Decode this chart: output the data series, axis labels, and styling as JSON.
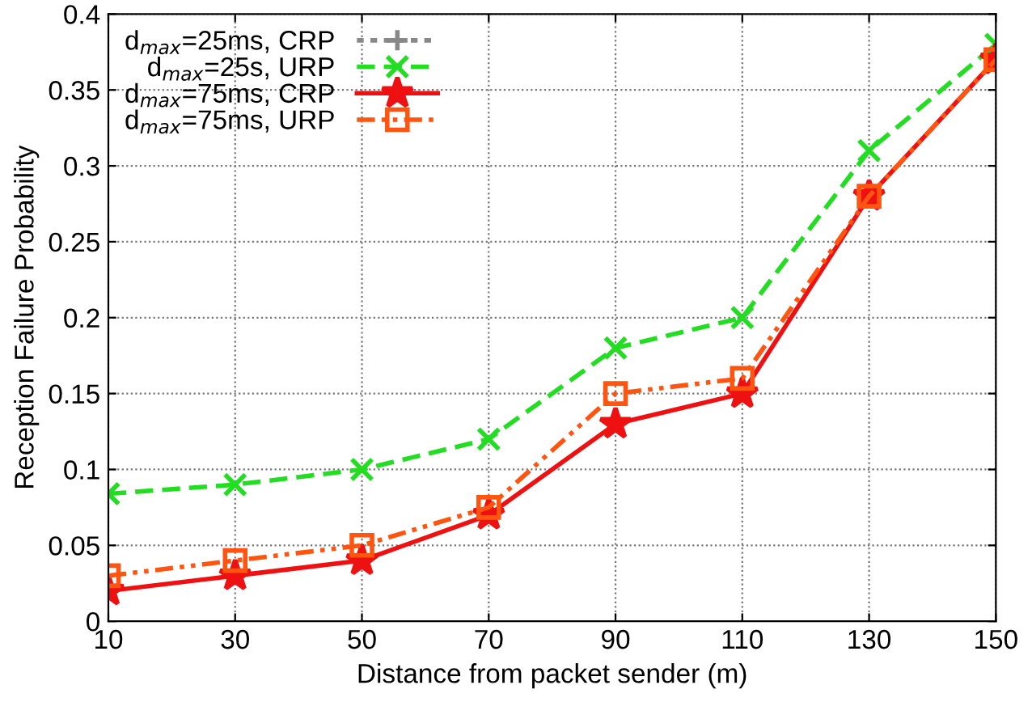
{
  "chart_data": {
    "type": "line",
    "xlabel": "Distance from packet sender (m)",
    "ylabel": "Reception Failure Probability",
    "x": [
      10,
      30,
      50,
      70,
      90,
      110,
      130,
      150
    ],
    "series": [
      {
        "name": "d$_{max}$=25ms, CRP",
        "color": "#888888",
        "marker": "plus",
        "line_style": "dotted",
        "values": [
          null,
          null,
          null,
          null,
          null,
          null,
          null,
          null
        ]
      },
      {
        "name": "d$_{max}$=25s, URP",
        "color": "#22dd22",
        "marker": "cross",
        "line_style": "dashed",
        "values": [
          0.084,
          0.09,
          0.1,
          0.12,
          0.18,
          0.2,
          0.31,
          0.38
        ]
      },
      {
        "name": "d$_{max}$=75ms, CRP",
        "color": "#ee1111",
        "marker": "star",
        "line_style": "solid",
        "values": [
          0.02,
          0.03,
          0.04,
          0.07,
          0.13,
          0.15,
          0.28,
          0.37
        ]
      },
      {
        "name": "d$_{max}$=75ms, URP",
        "color": "#ff5511",
        "marker": "square",
        "line_style": "dashdot",
        "values": [
          0.03,
          0.04,
          0.05,
          0.075,
          0.15,
          0.16,
          0.28,
          0.37
        ]
      }
    ],
    "xlim": [
      10,
      150
    ],
    "xticks": [
      10,
      30,
      50,
      70,
      90,
      110,
      130,
      150
    ],
    "ylim": [
      0,
      0.4
    ],
    "yticks": [
      0,
      0.05,
      0.1,
      0.15,
      0.2,
      0.25,
      0.3,
      0.35,
      0.4
    ],
    "grid": true,
    "legend": "top left"
  }
}
